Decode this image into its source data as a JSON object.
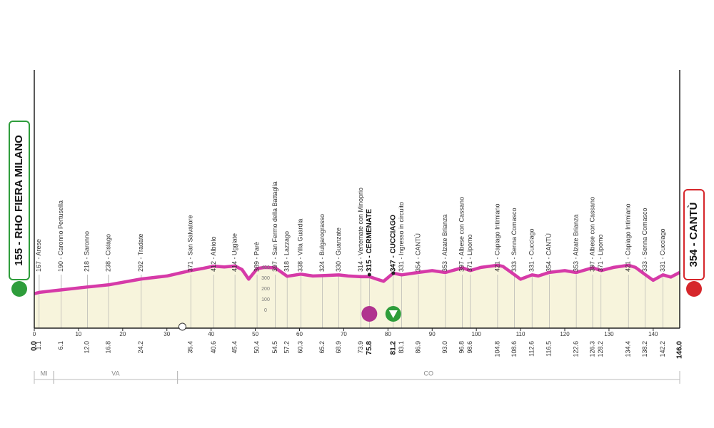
{
  "chart_data": {
    "type": "profile",
    "start": {
      "label": "155 - RHO FIERA MILANO",
      "km": {
        "value": 0,
        "label": "0.0"
      }
    },
    "finish": {
      "label": "354 - CANTÙ",
      "km": {
        "value": 146,
        "label": "146.0"
      }
    },
    "waypoints": [
      {
        "label": "167 - Arese",
        "km": 1.1
      },
      {
        "label": "190 - Caronno Pertusella",
        "km": 6.1
      },
      {
        "label": "218 - Saronno",
        "km": {
          "value": 12,
          "label": "12.0"
        }
      },
      {
        "label": "238 - Cislago",
        "km": 16.8
      },
      {
        "label": "292 - Tradate",
        "km": 24.2
      },
      {
        "label": "371 - San Salvatore",
        "km": 35.4
      },
      {
        "label": "412 - Albiolo",
        "km": 40.6
      },
      {
        "label": "414 - Uggiate",
        "km": 45.4
      },
      {
        "label": "389 - Parè",
        "km": 50.4
      },
      {
        "label": "397 - San Fermo della Battaglia",
        "km": 54.5
      },
      {
        "label": "318 - Lazzago",
        "km": 57.2
      },
      {
        "label": "338 - Villa Guardia",
        "km": 60.3
      },
      {
        "label": "324 - Bulgarograsso",
        "km": 65.2
      },
      {
        "label": "330 - Guanzate",
        "km": 68.9
      },
      {
        "label": "314 - Vertemate con Minoprio",
        "km": 73.9
      },
      {
        "label": "315 - CERMENATE",
        "km": 75.8,
        "bold": true
      },
      {
        "label": "347 - CUCCIAGO",
        "km": 81.2,
        "bold": true
      },
      {
        "label": "331 - Ingresso in circuito",
        "km": 83.1
      },
      {
        "label": "354 - CANTÙ",
        "km": 86.9
      },
      {
        "label": "353 - Alzate Brianza",
        "km": {
          "value": 93,
          "label": "93.0"
        }
      },
      {
        "label": "397 - Albese con Cassano",
        "km": 96.8
      },
      {
        "label": "371 - Lipomo",
        "km": 98.6
      },
      {
        "label": "421 - Capiago Intimiano",
        "km": 104.8
      },
      {
        "label": "333 - Senna Comasco",
        "km": 108.6
      },
      {
        "label": "331 - Cucciago",
        "km": 112.6
      },
      {
        "label": "354 - CANTÙ",
        "km": 116.5
      },
      {
        "label": "353 - Alzate Brianza",
        "km": 122.6
      },
      {
        "label": "397 - Albese con Cassano",
        "km": 126.3
      },
      {
        "label": "371 - Lipomo",
        "km": 128.2
      },
      {
        "label": "421 - Capiago Intimiano",
        "km": 134.4
      },
      {
        "label": "333 - Senna Comasco",
        "km": 138.2
      },
      {
        "label": "331 - Cucciago",
        "km": 142.2
      }
    ],
    "profile": {
      "km": [
        0,
        1.1,
        6.1,
        12,
        16.8,
        24.2,
        30,
        35.4,
        38,
        40.6,
        43,
        45.4,
        47,
        48.5,
        50.4,
        52,
        54.5,
        57.2,
        60.3,
        63,
        65.2,
        68.9,
        71,
        73.9,
        75.8,
        77.5,
        79,
        81.2,
        83.1,
        86.9,
        90,
        93,
        96.8,
        98.6,
        101,
        104.8,
        106,
        108.6,
        110,
        112.6,
        114,
        116.5,
        120,
        122.6,
        126.3,
        128.2,
        131,
        134.4,
        136,
        138.2,
        140,
        142.2,
        144,
        146
      ],
      "elevation": [
        155,
        167,
        190,
        218,
        238,
        292,
        320,
        371,
        390,
        412,
        405,
        414,
        380,
        290,
        389,
        400,
        397,
        318,
        338,
        320,
        324,
        330,
        320,
        314,
        315,
        290,
        270,
        347,
        331,
        354,
        370,
        353,
        397,
        371,
        400,
        421,
        410,
        333,
        290,
        331,
        320,
        354,
        370,
        353,
        397,
        371,
        400,
        421,
        400,
        333,
        280,
        331,
        310,
        354
      ],
      "color": "#d63aa8",
      "fill": "#f7f4dc"
    },
    "xlim": [
      0,
      146
    ],
    "xticks": [
      0,
      10,
      20,
      30,
      40,
      50,
      60,
      70,
      80,
      90,
      100,
      110,
      120,
      130,
      140
    ],
    "ylim": [
      -167,
      2233
    ],
    "yticks": [
      0,
      100,
      200,
      300,
      400
    ],
    "provinces": [
      {
        "name": "MI",
        "from": 0,
        "to": 4.4
      },
      {
        "name": "VA",
        "from": 4.4,
        "to": 32.4
      },
      {
        "name": "CO",
        "from": 32.4,
        "to": 146
      }
    ]
  }
}
